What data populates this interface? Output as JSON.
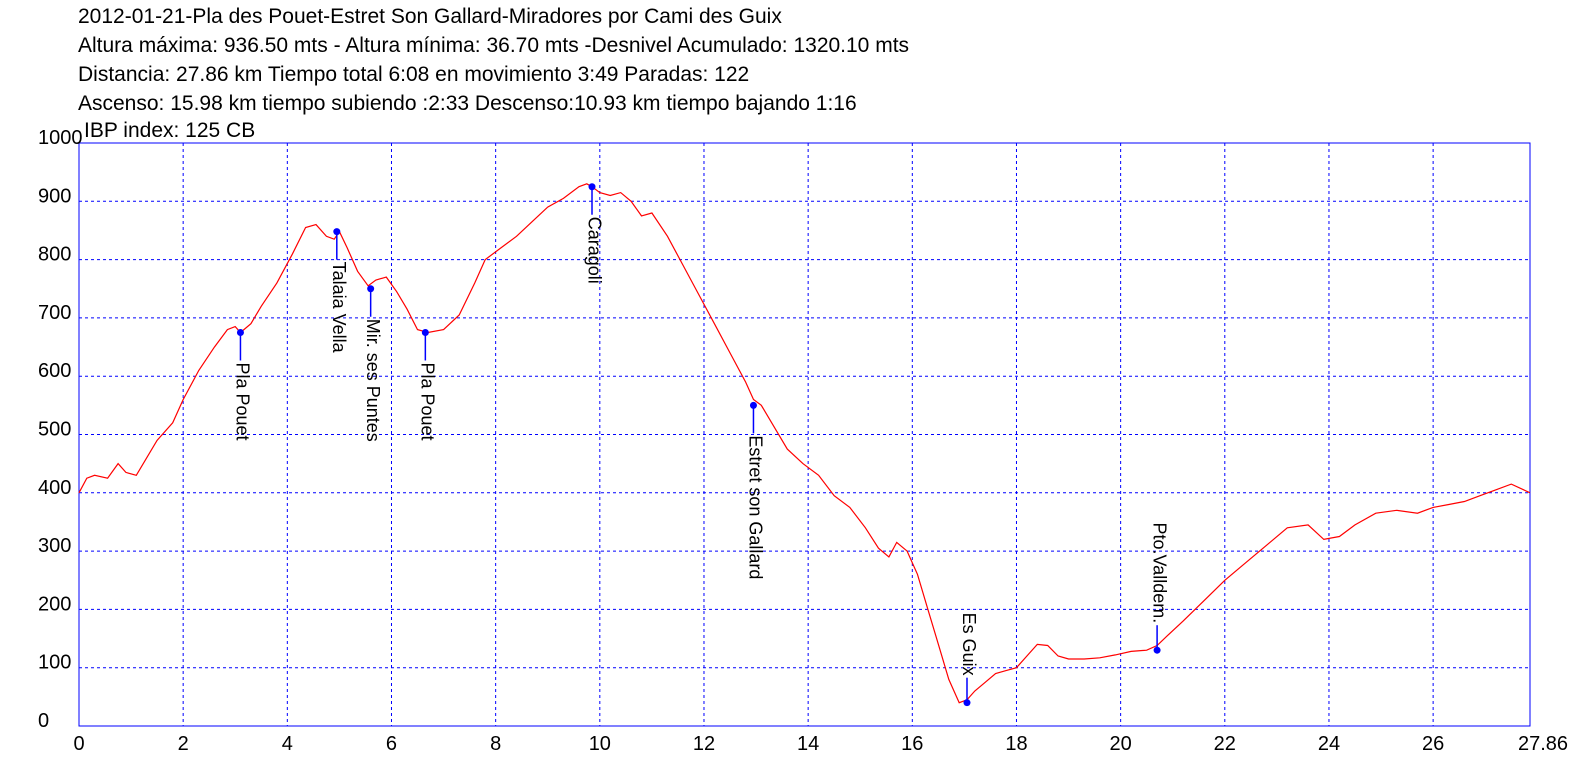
{
  "header": {
    "title": "2012-01-21-Pla des Pouet-Estret Son Gallard-Miradores por Cami des Guix",
    "line2": "Altura máxima: 936.50 mts - Altura mínima: 36.70 mts -Desnivel Acumulado: 1320.10 mts",
    "line3": "Distancia: 27.86 km  Tiempo total 6:08  en movimiento 3:49 Paradas: 122",
    "line4": "Ascenso: 15.98 km  tiempo subiendo :2:33  Descenso:10.93 km tiempo bajando 1:16",
    "ibp": "IBP index: 125 CB"
  },
  "colors": {
    "line": "#ff0000",
    "marker": "#0000ff",
    "frame": "#0000ff",
    "grid": "#0000ff"
  },
  "chart_data": {
    "type": "line",
    "xlim": [
      0,
      27.86
    ],
    "ylim": [
      0,
      1000
    ],
    "grid": true,
    "x_ticks": [
      "0",
      "2",
      "4",
      "6",
      "8",
      "10",
      "12",
      "14",
      "16",
      "18",
      "20",
      "22",
      "24",
      "26",
      "27.86"
    ],
    "y_ticks": [
      "1000",
      "900",
      "800",
      "700",
      "600",
      "500",
      "400",
      "300",
      "200",
      "100",
      "0"
    ],
    "series": [
      {
        "x": [
          0,
          0.15,
          0.3,
          0.55,
          0.75,
          0.9,
          1.1,
          1.3,
          1.5,
          1.8,
          2.0,
          2.3,
          2.6,
          2.85,
          3.0,
          3.1,
          3.3,
          3.5,
          3.8,
          4.1,
          4.35,
          4.55,
          4.75,
          4.9,
          5.0,
          5.15,
          5.35,
          5.55,
          5.7,
          5.9,
          6.1,
          6.3,
          6.5,
          6.7,
          7.0,
          7.3,
          7.6,
          7.8,
          8.1,
          8.4,
          8.7,
          9.0,
          9.3,
          9.6,
          9.75,
          9.85,
          10.0,
          10.2,
          10.4,
          10.6,
          10.8,
          11.0,
          11.3,
          11.6,
          11.9,
          12.2,
          12.5,
          12.8,
          12.95,
          13.1,
          13.3,
          13.6,
          13.9,
          14.2,
          14.5,
          14.8,
          15.1,
          15.35,
          15.55,
          15.7,
          15.9,
          16.1,
          16.3,
          16.5,
          16.7,
          16.9,
          17.05,
          17.2,
          17.4,
          17.6,
          17.8,
          18.0,
          18.2,
          18.4,
          18.6,
          18.8,
          19.0,
          19.3,
          19.6,
          19.9,
          20.2,
          20.5,
          20.7,
          20.9,
          21.2,
          21.6,
          22.0,
          22.4,
          22.8,
          23.2,
          23.6,
          23.9,
          24.2,
          24.5,
          24.9,
          25.3,
          25.7,
          26.0,
          26.3,
          26.6,
          26.9,
          27.2,
          27.5,
          27.86
        ],
        "y": [
          400,
          425,
          430,
          425,
          450,
          435,
          430,
          460,
          490,
          520,
          560,
          610,
          650,
          680,
          685,
          675,
          690,
          720,
          760,
          810,
          855,
          860,
          840,
          835,
          848,
          820,
          780,
          755,
          765,
          770,
          745,
          715,
          680,
          675,
          680,
          705,
          760,
          800,
          820,
          840,
          865,
          890,
          905,
          925,
          930,
          925,
          915,
          910,
          915,
          900,
          875,
          880,
          840,
          790,
          740,
          690,
          640,
          590,
          560,
          550,
          520,
          475,
          450,
          430,
          395,
          375,
          340,
          305,
          290,
          315,
          300,
          260,
          200,
          140,
          80,
          40,
          45,
          60,
          75,
          90,
          95,
          100,
          120,
          140,
          138,
          120,
          115,
          115,
          117,
          122,
          128,
          130,
          138,
          155,
          180,
          215,
          250,
          280,
          310,
          340,
          345,
          320,
          325,
          345,
          365,
          370,
          365,
          375,
          380,
          385,
          395,
          405,
          415,
          400
        ]
      }
    ],
    "annotations": [
      {
        "label": "Pla Pouet",
        "x": 3.1,
        "y": 675
      },
      {
        "label": "Talaia Vella",
        "x": 4.95,
        "y": 848
      },
      {
        "label": "Mir. ses Puntes",
        "x": 5.6,
        "y": 750
      },
      {
        "label": "Pla Pouet",
        "x": 6.65,
        "y": 675
      },
      {
        "label": "Caragoli",
        "x": 9.85,
        "y": 925
      },
      {
        "label": "Estret son Gallard",
        "x": 12.95,
        "y": 550
      },
      {
        "label": "Es Guix",
        "x": 17.05,
        "y": 40
      },
      {
        "label": "Pto.Valldem.",
        "x": 20.7,
        "y": 130
      }
    ]
  }
}
